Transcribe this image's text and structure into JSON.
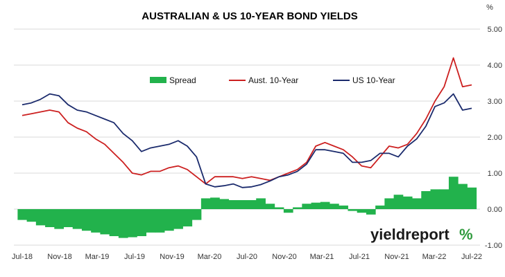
{
  "chart_data": {
    "type": "line",
    "title": "AUSTRALIAN & US 10-YEAR BOND YIELDS",
    "y_unit": "%",
    "ylim": [
      -1.0,
      5.0
    ],
    "y_ticks": [
      "5.00",
      "4.00",
      "3.00",
      "2.00",
      "1.00",
      "0.00",
      "-1.00"
    ],
    "x_ticks": [
      "Jul-18",
      "Nov-18",
      "Mar-19",
      "Jul-19",
      "Nov-19",
      "Mar-20",
      "Jul-20",
      "Nov-20",
      "Mar-21",
      "Jul-21",
      "Nov-21",
      "Mar-22",
      "Jul-22"
    ],
    "grid": true,
    "legend_position": "top-center",
    "x": [
      "Jul-18",
      "Aug-18",
      "Sep-18",
      "Oct-18",
      "Nov-18",
      "Dec-18",
      "Jan-19",
      "Feb-19",
      "Mar-19",
      "Apr-19",
      "May-19",
      "Jun-19",
      "Jul-19",
      "Aug-19",
      "Sep-19",
      "Oct-19",
      "Nov-19",
      "Dec-19",
      "Jan-20",
      "Feb-20",
      "Mar-20",
      "Apr-20",
      "May-20",
      "Jun-20",
      "Jul-20",
      "Aug-20",
      "Sep-20",
      "Oct-20",
      "Nov-20",
      "Dec-20",
      "Jan-21",
      "Feb-21",
      "Mar-21",
      "Apr-21",
      "May-21",
      "Jun-21",
      "Jul-21",
      "Aug-21",
      "Sep-21",
      "Oct-21",
      "Nov-21",
      "Dec-21",
      "Jan-22",
      "Feb-22",
      "Mar-22",
      "Apr-22",
      "May-22",
      "Jun-22",
      "Jul-22",
      "Aug-22"
    ],
    "series": [
      {
        "name": "Spread",
        "type": "bar",
        "color": "#22b24c",
        "values": [
          -0.3,
          -0.35,
          -0.45,
          -0.5,
          -0.55,
          -0.5,
          -0.55,
          -0.6,
          -0.65,
          -0.7,
          -0.75,
          -0.8,
          -0.78,
          -0.75,
          -0.65,
          -0.65,
          -0.6,
          -0.55,
          -0.48,
          -0.3,
          0.3,
          0.32,
          0.28,
          0.25,
          0.25,
          0.25,
          0.3,
          0.15,
          0.05,
          -0.1,
          0.05,
          0.15,
          0.18,
          0.2,
          0.15,
          0.1,
          -0.05,
          -0.1,
          -0.15,
          0.1,
          0.3,
          0.4,
          0.35,
          0.3,
          0.5,
          0.55,
          0.55,
          0.9,
          0.7,
          0.6
        ]
      },
      {
        "name": "Aust. 10-Year",
        "type": "line",
        "color": "#cc1f1f",
        "values": [
          2.6,
          2.65,
          2.7,
          2.75,
          2.7,
          2.4,
          2.25,
          2.15,
          1.95,
          1.8,
          1.55,
          1.3,
          1.0,
          0.95,
          1.05,
          1.05,
          1.15,
          1.2,
          1.1,
          0.9,
          0.7,
          0.9,
          0.9,
          0.9,
          0.85,
          0.9,
          0.85,
          0.8,
          0.9,
          1.0,
          1.1,
          1.3,
          1.75,
          1.85,
          1.75,
          1.65,
          1.45,
          1.2,
          1.15,
          1.45,
          1.75,
          1.7,
          1.8,
          2.1,
          2.5,
          3.0,
          3.4,
          4.2,
          3.4,
          3.45
        ]
      },
      {
        "name": "US 10-Year",
        "type": "line",
        "color": "#1a2a6c",
        "values": [
          2.9,
          2.95,
          3.05,
          3.2,
          3.15,
          2.9,
          2.75,
          2.7,
          2.6,
          2.5,
          2.4,
          2.1,
          1.9,
          1.6,
          1.7,
          1.75,
          1.8,
          1.9,
          1.75,
          1.45,
          0.7,
          0.62,
          0.65,
          0.7,
          0.6,
          0.62,
          0.68,
          0.78,
          0.9,
          0.95,
          1.05,
          1.25,
          1.65,
          1.65,
          1.6,
          1.55,
          1.3,
          1.3,
          1.35,
          1.55,
          1.55,
          1.45,
          1.75,
          1.95,
          2.3,
          2.85,
          2.95,
          3.2,
          2.75,
          2.8
        ]
      }
    ]
  },
  "branding": {
    "logo_word": "yieldreport",
    "logo_symbol": "%"
  }
}
